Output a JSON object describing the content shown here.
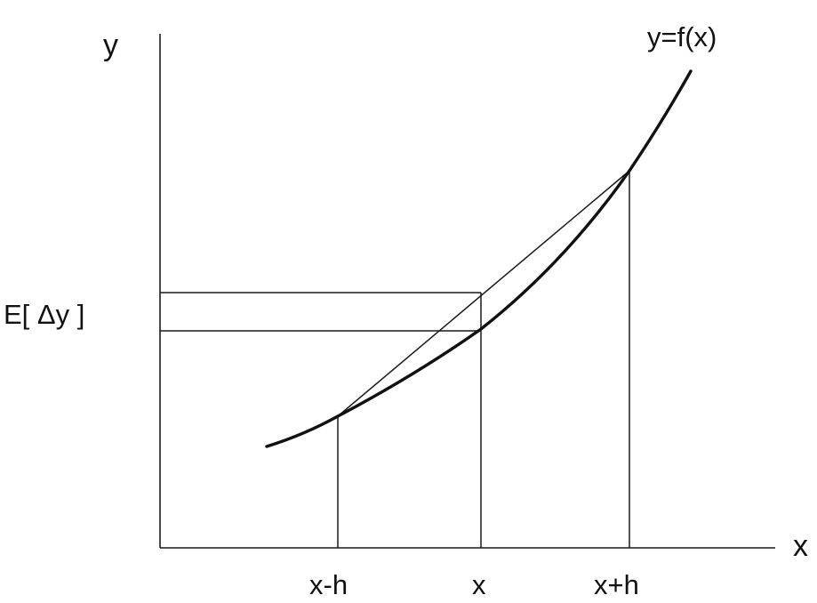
{
  "labels": {
    "y_axis": "y",
    "x_axis": "x",
    "curve": "y=f(x)",
    "expected_dy": "E[ Δy ]",
    "tick_left": "x-h",
    "tick_mid": "x",
    "tick_right": "x+h"
  },
  "colors": {
    "ink": "#111111",
    "background": "#ffffff"
  }
}
